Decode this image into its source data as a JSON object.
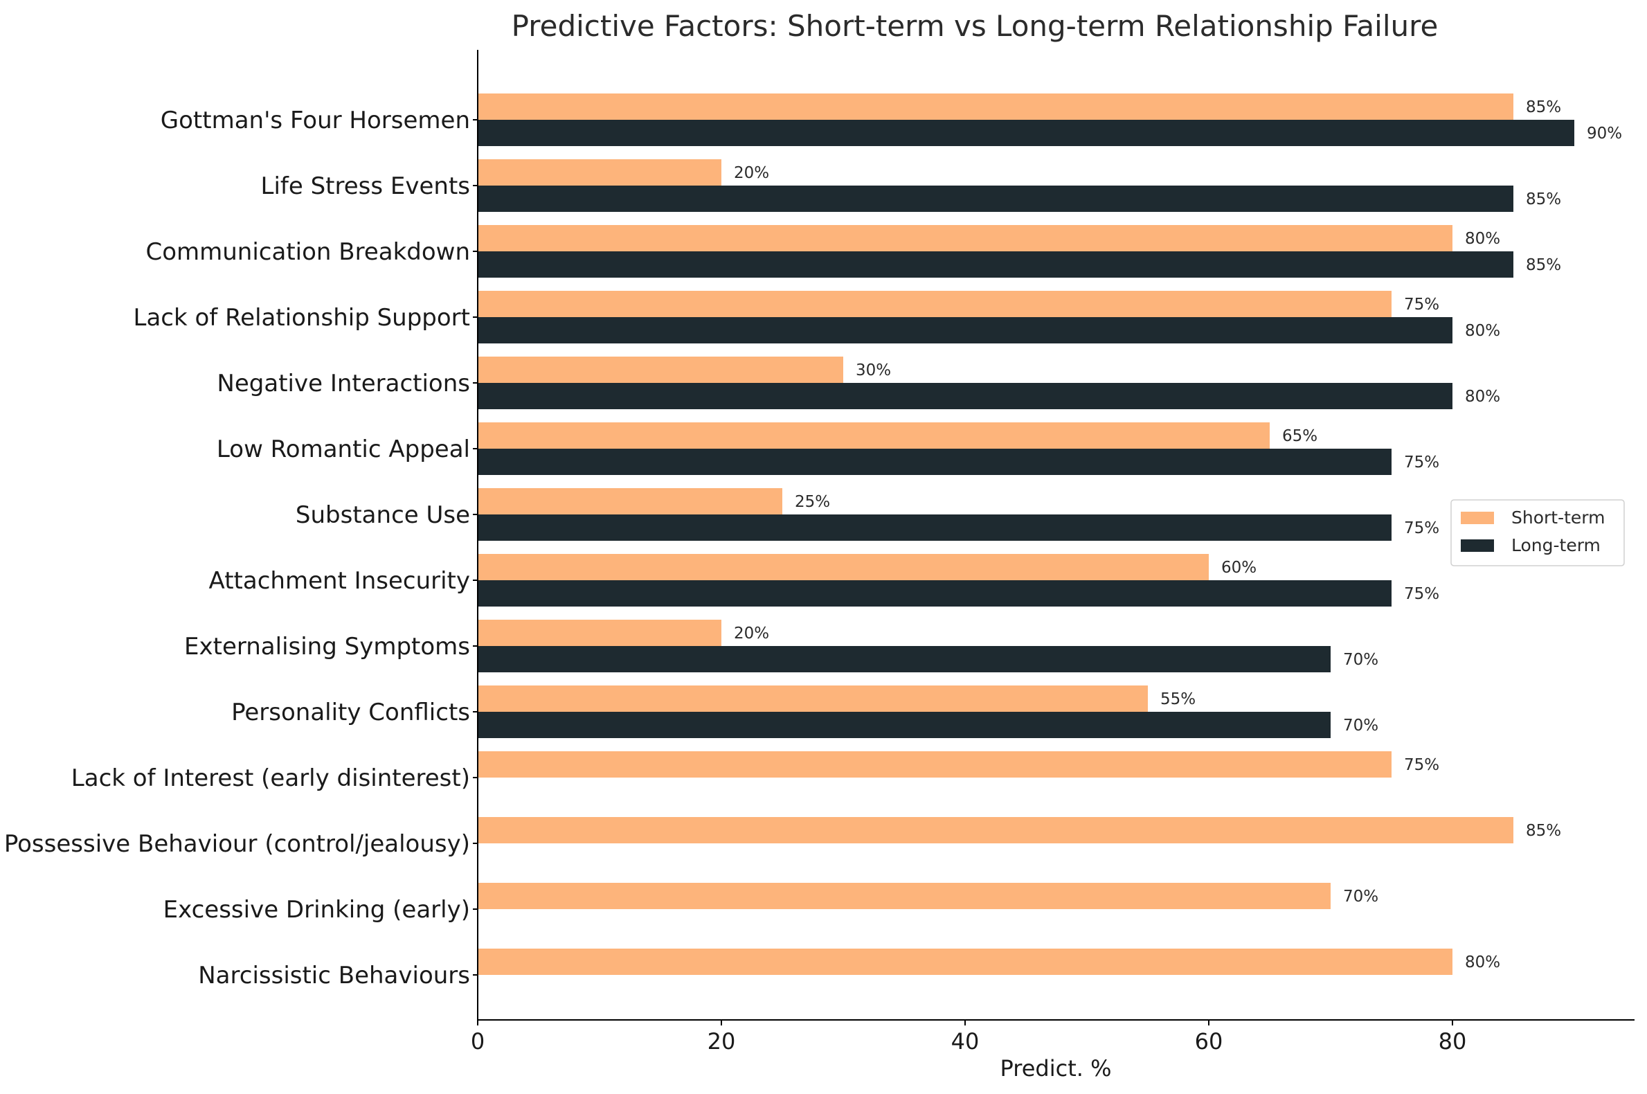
{
  "chart_data": {
    "type": "bar",
    "orientation": "horizontal",
    "title": "Predictive Factors: Short-term vs Long-term Relationship Failure",
    "xlabel": "Predict. %",
    "ylabel": "",
    "xlim": [
      0,
      95
    ],
    "xticks": [
      0,
      20,
      40,
      60,
      80
    ],
    "grid": false,
    "legend_position": "right",
    "categories": [
      "Gottman's Four Horsemen",
      "Life Stress Events",
      "Communication Breakdown",
      "Lack of Relationship Support",
      "Negative Interactions",
      "Low Romantic Appeal",
      "Substance Use",
      "Attachment Insecurity",
      "Externalising Symptoms",
      "Personality Conflicts",
      "Lack of Interest (early disinterest)",
      "Possessive Behaviour (control/jealousy)",
      "Excessive Drinking (early)",
      "Narcissistic Behaviours"
    ],
    "series": [
      {
        "name": "Short-term",
        "color": "#FDB47B",
        "values": [
          85,
          20,
          80,
          75,
          30,
          65,
          25,
          60,
          20,
          55,
          75,
          85,
          70,
          80
        ]
      },
      {
        "name": "Long-term",
        "color": "#1E2A30",
        "values": [
          90,
          85,
          85,
          80,
          80,
          75,
          75,
          75,
          70,
          70,
          null,
          null,
          null,
          null
        ]
      }
    ]
  }
}
